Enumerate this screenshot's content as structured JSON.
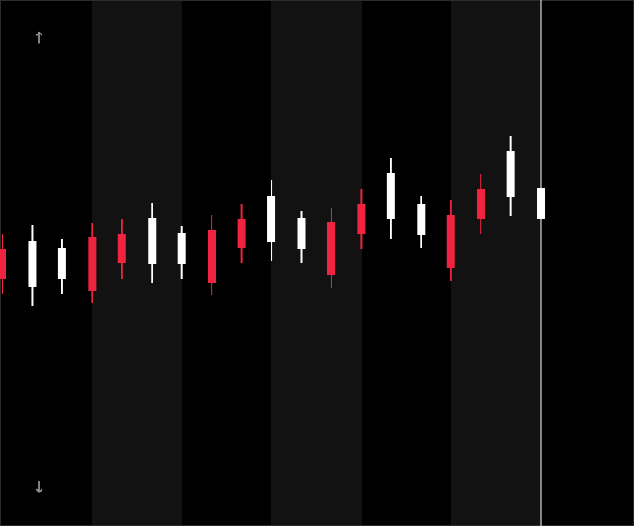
{
  "chart_data": {
    "type": "candlestick",
    "up_color": "#ffffff",
    "down_color": "#f0243f",
    "ylim": [
      0,
      659
    ],
    "open": [
      347,
      300,
      309,
      362,
      366,
      328,
      328,
      371,
      384,
      356,
      347,
      381,
      403,
      384,
      365,
      390,
      422,
      412,
      384
    ],
    "high": [
      366,
      377,
      359,
      380,
      385,
      405,
      376,
      390,
      403,
      433,
      395,
      399,
      422,
      461,
      414,
      409,
      441,
      489,
      423
    ],
    "low": [
      291,
      276,
      291,
      279,
      310,
      304,
      310,
      289,
      329,
      332,
      329,
      298,
      347,
      360,
      348,
      307,
      366,
      389,
      384
    ],
    "close": [
      310,
      357,
      348,
      295,
      329,
      386,
      367,
      305,
      348,
      414,
      386,
      314,
      366,
      442,
      404,
      323,
      385,
      470,
      423
    ]
  },
  "controls": {
    "up": "↑",
    "down": "↓"
  }
}
